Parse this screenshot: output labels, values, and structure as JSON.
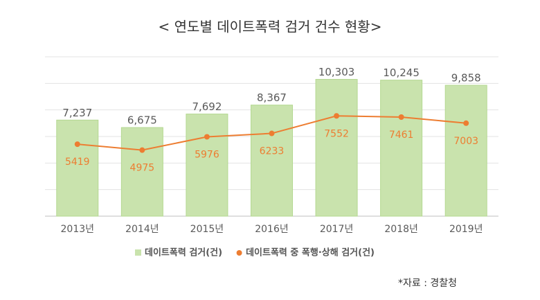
{
  "chart_data": {
    "type": "bar_line",
    "title": "< 연도별 데이트폭력 검거 건수 현황>",
    "categories": [
      "2013년",
      "2014년",
      "2015년",
      "2016년",
      "2017년",
      "2018년",
      "2019년"
    ],
    "series": [
      {
        "name": "데이트폭력 검거(건)",
        "type": "bar",
        "color": "#c9e3ad",
        "values": [
          7237,
          6675,
          7692,
          8367,
          10303,
          10245,
          9858
        ],
        "value_labels": [
          "7,237",
          "6,675",
          "7,692",
          "8,367",
          "10,303",
          "10,245",
          "9,858"
        ]
      },
      {
        "name": "데이트폭력 중 폭행·상해 검거(건)",
        "type": "line",
        "color": "#ed7d31",
        "values": [
          5419,
          4975,
          5976,
          6233,
          7552,
          7461,
          7003
        ]
      }
    ],
    "ylim": [
      0,
      12000
    ],
    "yticks": [
      0,
      2000,
      4000,
      6000,
      8000,
      10000,
      12000
    ],
    "grid": true,
    "source": "*자료 : 경찰청"
  }
}
